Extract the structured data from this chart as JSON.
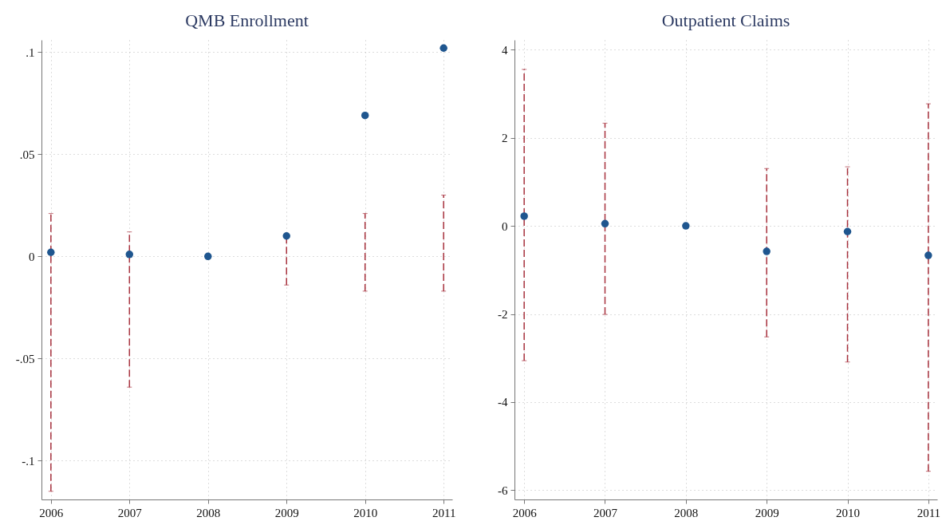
{
  "chart_data": [
    {
      "type": "scatter",
      "title": "QMB Enrollment",
      "x": [
        2006,
        2007,
        2008,
        2009,
        2010,
        2011
      ],
      "series": [
        {
          "color": "#1f568f",
          "values": [
            0.002,
            0.001,
            0,
            0.01,
            0.069,
            0.102
          ],
          "errors": [
            [
              -0.115,
              0.021
            ],
            [
              -0.064,
              0.012
            ],
            null,
            [
              -0.014,
              0.011
            ],
            [
              -0.017,
              0.021
            ],
            [
              -0.017,
              0.03
            ]
          ]
        }
      ],
      "xlim": [
        2005.88,
        2011.11
      ],
      "ylim": [
        -0.119,
        0.106
      ],
      "xticks": [
        2006,
        2007,
        2008,
        2009,
        2010,
        2011
      ],
      "yticks": [
        {
          "value": -0.1,
          "label": "-.1"
        },
        {
          "value": -0.05,
          "label": "-.05"
        },
        0,
        {
          "value": 0.05,
          "label": ".05"
        },
        {
          "value": 0.1,
          "label": ".1"
        }
      ],
      "grid": true,
      "marker": "circle"
    },
    {
      "type": "scatter",
      "title": "Outpatient Claims",
      "x": [
        2006,
        2007,
        2008,
        2009,
        2010,
        2011
      ],
      "series": [
        {
          "color": "#1f568f",
          "values": [
            0.22,
            0.05,
            0,
            -0.58,
            -0.13,
            -0.67
          ],
          "errors": [
            [
              -3.06,
              3.55
            ],
            [
              -2.01,
              2.33
            ],
            null,
            [
              -2.52,
              1.3
            ],
            [
              -3.09,
              1.34
            ],
            [
              -5.57,
              2.77
            ]
          ]
        }
      ],
      "xlim": [
        2005.88,
        2011.11
      ],
      "ylim": [
        -6.21,
        4.22
      ],
      "xticks": [
        2006,
        2007,
        2008,
        2009,
        2010,
        2011
      ],
      "yticks": [
        -6,
        -4,
        -2,
        0,
        2,
        4
      ],
      "grid": true,
      "marker": "circle"
    }
  ]
}
